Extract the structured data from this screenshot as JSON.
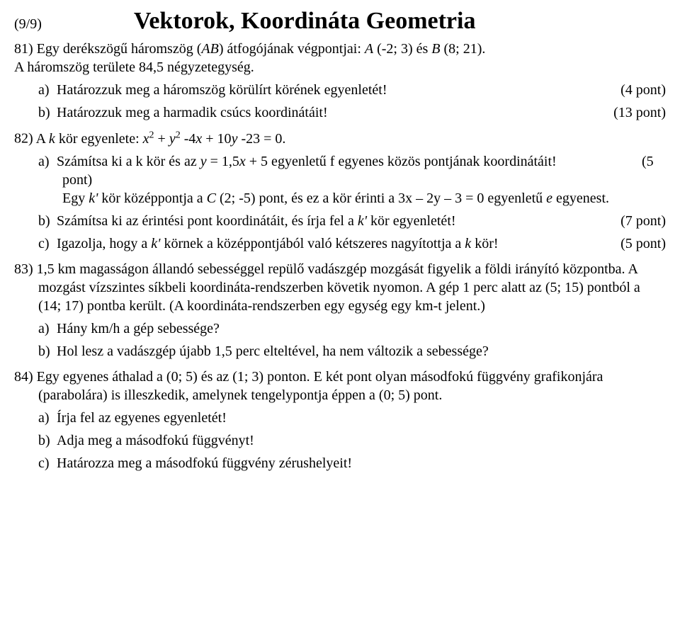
{
  "header": {
    "pageNum": "(9/9)",
    "title": "Vektorok, Koordináta Geometria"
  },
  "p81": {
    "num": "81)",
    "intro1": "Egy derékszögű háromszög (AB) átfogójának végpontjai: A (-2; 3) és B (8; 21).",
    "intro2": "A háromszög területe 84,5 négyzetegység.",
    "a_letter": "a)",
    "a_text": "Határozzuk meg a háromszög körülírt körének egyenletét!",
    "a_points": "(4 pont)",
    "b_letter": "b)",
    "b_text": "Határozzuk meg a harmadik csúcs koordinátáit!",
    "b_points": "(13 pont)"
  },
  "p82": {
    "num": "82)",
    "intro": "A k kör egyenlete: x² + y² -4x + 10y -23 = 0.",
    "a_letter": "a)",
    "a_text": "Számítsa ki a k kör és az y = 1,5x + 5 egyenletű f egyenes közös pontjának koordinátáit!",
    "a_points": "(5",
    "a_cont1": "pont)",
    "a_cont2": "Egy k' kör középpontja a C (2; -5) pont, és ez a kör érinti a 3x – 2y – 3 = 0 egyenletű e egyenest.",
    "b_letter": "b)",
    "b_text": "Számítsa ki az érintési pont koordinátáit, és írja fel a k' kör egyenletét!",
    "b_points": "(7 pont)",
    "c_letter": "c)",
    "c_text": "Igazolja, hogy a k' körnek a középpontjából való kétszeres nagyítottja a k kör!",
    "c_points": "(5 pont)"
  },
  "p83": {
    "num": "83)",
    "intro": "1,5 km magasságon állandó sebességgel repülő vadászgép mozgását figyelik a földi irányító központba. A mozgást vízszintes síkbeli koordináta-rendszerben követik nyomon. A gép 1 perc alatt az (5; 15) pontból a (14; 17) pontba került. (A koordináta-rendszerben egy egység egy km-t jelent.)",
    "a_letter": "a)",
    "a_text": "Hány km/h a gép sebessége?",
    "b_letter": "b)",
    "b_text": "Hol lesz a vadászgép újabb 1,5 perc elteltével, ha nem változik a sebessége?"
  },
  "p84": {
    "num": "84)",
    "intro": "Egy egyenes áthalad a (0; 5) és az (1; 3) ponton. E két pont olyan másodfokú függvény grafikonjára (parabolára) is illeszkedik, amelynek tengelypontja éppen a (0; 5) pont.",
    "a_letter": "a)",
    "a_text": "Írja fel az egyenes egyenletét!",
    "b_letter": "b)",
    "b_text": "Adja meg a másodfokú függvényt!",
    "c_letter": "c)",
    "c_text": "Határozza meg a másodfokú függvény zérushelyeit!"
  }
}
